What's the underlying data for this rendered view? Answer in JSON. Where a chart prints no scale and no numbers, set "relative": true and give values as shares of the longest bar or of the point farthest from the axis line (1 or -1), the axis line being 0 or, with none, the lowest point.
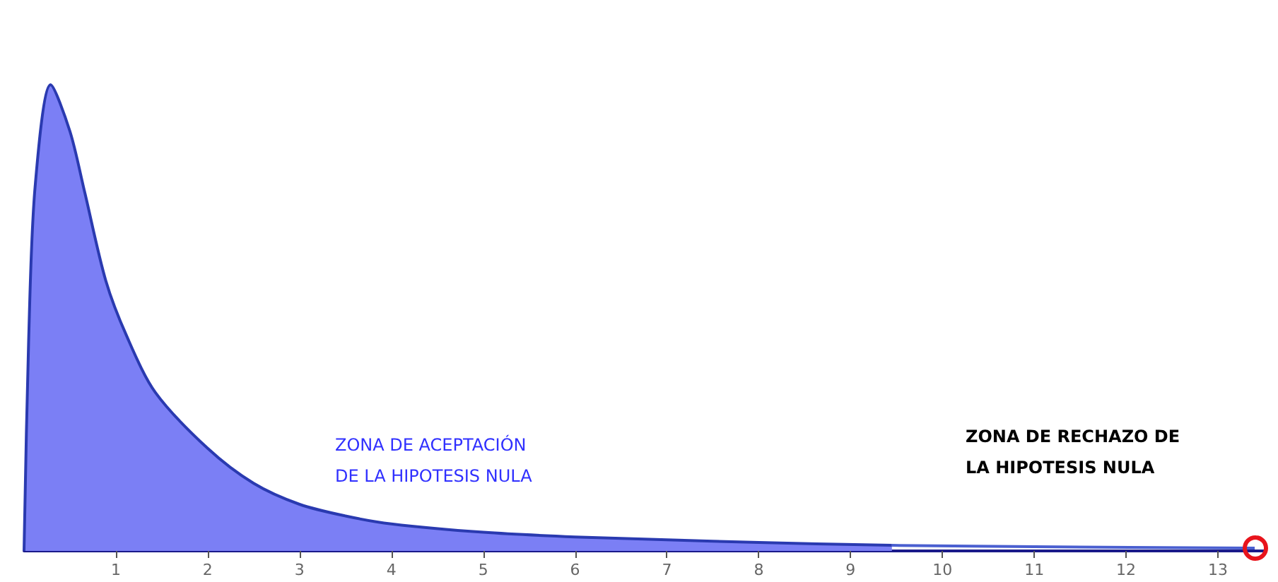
{
  "chart_data": {
    "type": "area",
    "relative": true,
    "xlim": [
      0,
      13.5
    ],
    "xticks": [
      1,
      2,
      3,
      4,
      5,
      6,
      7,
      8,
      9,
      10,
      11,
      12,
      13
    ],
    "grid": false,
    "marker": "none",
    "series": [
      {
        "color": "#7b7ff5",
        "x": [
          0,
          0.05,
          0.12,
          0.29,
          0.5,
          0.66,
          0.89,
          1.12,
          1.43,
          2,
          2.5,
          3,
          3.5,
          4,
          5,
          6,
          7,
          8,
          9.45
        ],
        "values": [
          0,
          0.45,
          0.78,
          1,
          0.9,
          0.77,
          0.58,
          0.46,
          0.34,
          0.22,
          0.145,
          0.1,
          0.075,
          0.058,
          0.04,
          0.03,
          0.024,
          0.018,
          0.012
        ]
      },
      {
        "type": "line",
        "color": "#4a5fd0",
        "x": [
          9.45,
          11,
          13.4
        ],
        "values": [
          0.012,
          0.009,
          0.006
        ]
      }
    ],
    "annotations": [
      "ZONA DE ACEPTACIÓN\nDE LA HIPOTESIS NULA",
      "ZONA DE RECHAZO DE\nLA HIPOTESIS NULA"
    ]
  }
}
